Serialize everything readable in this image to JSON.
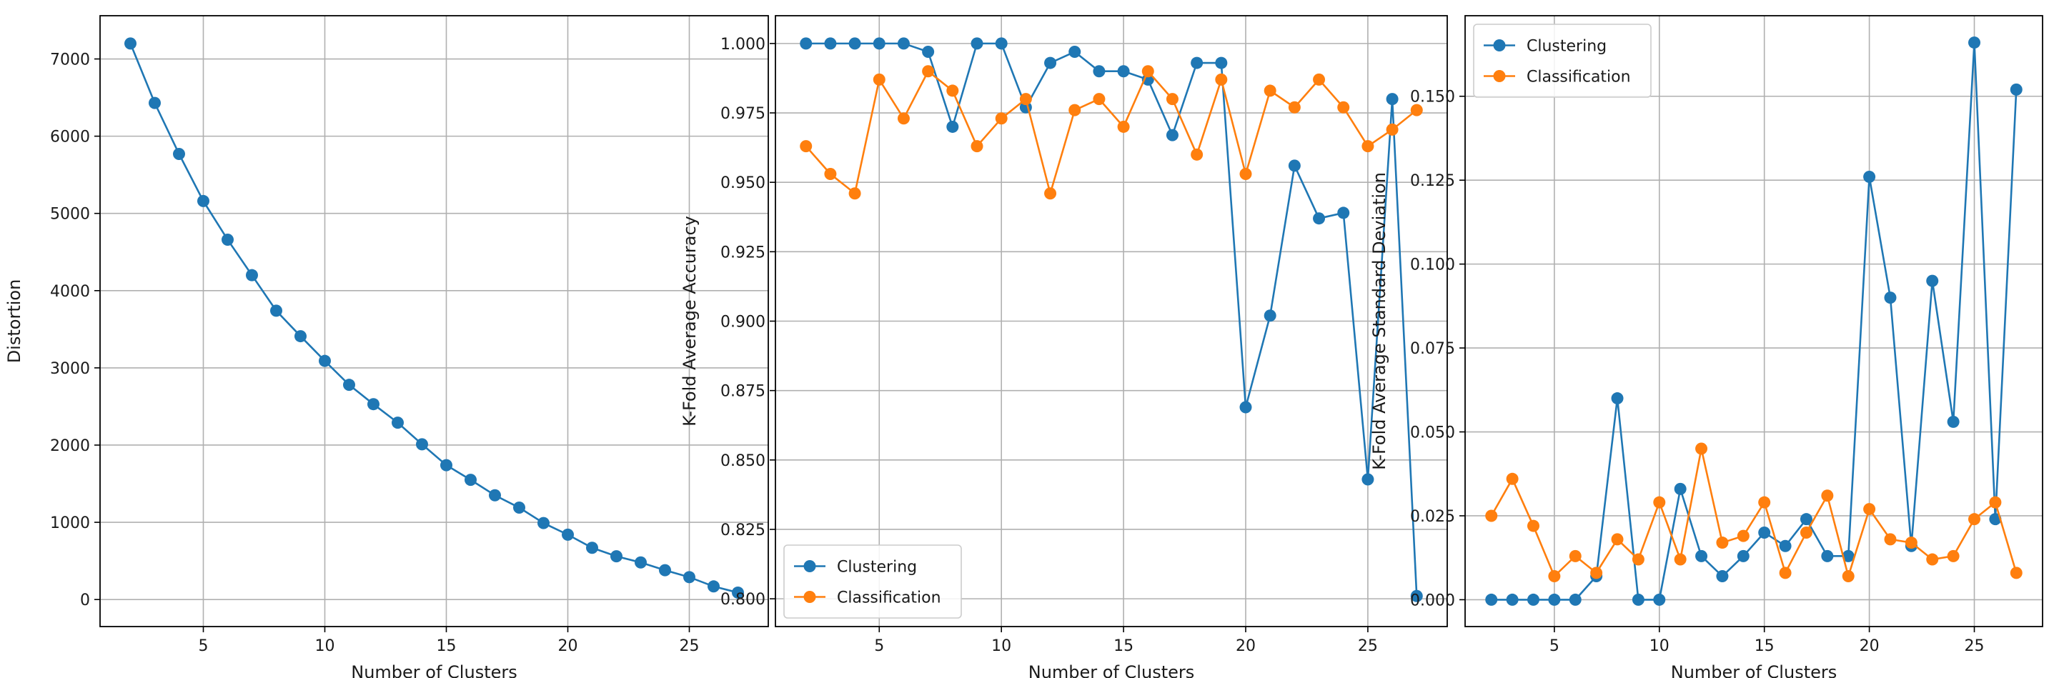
{
  "colors": {
    "clustering": "#1f77b4",
    "classification": "#ff7f0e",
    "grid": "#b0b0b0",
    "axis": "#000000"
  },
  "chart_data": [
    {
      "type": "line",
      "xlabel": "Number of Clusters",
      "ylabel": "Distortion",
      "xlim": [
        0.75,
        28.25
      ],
      "ylim": [
        -350,
        7560
      ],
      "xticks": [
        5,
        10,
        15,
        20,
        25
      ],
      "yticks": [
        0,
        1000,
        2000,
        3000,
        4000,
        5000,
        6000,
        7000
      ],
      "ytick_labels": [
        "0",
        "1000",
        "2000",
        "3000",
        "4000",
        "5000",
        "6000",
        "7000"
      ],
      "grid": true,
      "legend": null,
      "x": [
        2,
        3,
        4,
        5,
        6,
        7,
        8,
        9,
        10,
        11,
        12,
        13,
        14,
        15,
        16,
        17,
        18,
        19,
        20,
        21,
        22,
        23,
        24,
        25,
        26,
        27
      ],
      "series": [
        {
          "color": "#1f77b4",
          "values": [
            7200,
            6430,
            5770,
            5160,
            4660,
            4200,
            3740,
            3410,
            3090,
            2780,
            2530,
            2290,
            2010,
            1740,
            1550,
            1350,
            1190,
            990,
            840,
            670,
            560,
            480,
            380,
            290,
            170,
            90
          ]
        }
      ]
    },
    {
      "type": "line",
      "xlabel": "Number of Clusters",
      "ylabel": "K-Fold Average Accuracy",
      "xlim": [
        0.75,
        28.25
      ],
      "ylim": [
        0.79,
        1.01
      ],
      "xticks": [
        5,
        10,
        15,
        20,
        25
      ],
      "yticks": [
        0.8,
        0.825,
        0.85,
        0.875,
        0.9,
        0.925,
        0.95,
        0.975,
        1.0
      ],
      "ytick_labels": [
        "0.800",
        "0.825",
        "0.850",
        "0.875",
        "0.900",
        "0.925",
        "0.950",
        "0.975",
        "1.000"
      ],
      "grid": true,
      "legend": "lower-left",
      "x": [
        2,
        3,
        4,
        5,
        6,
        7,
        8,
        9,
        10,
        11,
        12,
        13,
        14,
        15,
        16,
        17,
        18,
        19,
        20,
        21,
        22,
        23,
        24,
        25,
        26,
        27
      ],
      "series": [
        {
          "name": "Clustering",
          "color": "#1f77b4",
          "values": [
            1.0,
            1.0,
            1.0,
            1.0,
            1.0,
            0.997,
            0.97,
            1.0,
            1.0,
            0.977,
            0.993,
            0.997,
            0.99,
            0.99,
            0.987,
            0.967,
            0.993,
            0.993,
            0.869,
            0.902,
            0.956,
            0.937,
            0.939,
            0.843,
            0.98,
            0.801
          ]
        },
        {
          "name": "Classification",
          "color": "#ff7f0e",
          "values": [
            0.963,
            0.953,
            0.946,
            0.987,
            0.973,
            0.99,
            0.983,
            0.963,
            0.973,
            0.98,
            0.946,
            0.976,
            0.98,
            0.97,
            0.99,
            0.98,
            0.96,
            0.987,
            0.953,
            0.983,
            0.977,
            0.987,
            0.977,
            0.963,
            0.969,
            0.976
          ]
        }
      ]
    },
    {
      "type": "line",
      "xlabel": "Number of Clusters",
      "ylabel": "K-Fold Average Standard Deviation",
      "xlim": [
        0.75,
        28.25
      ],
      "ylim": [
        -0.008,
        0.174
      ],
      "xticks": [
        5,
        10,
        15,
        20,
        25
      ],
      "yticks": [
        0.0,
        0.025,
        0.05,
        0.075,
        0.1,
        0.125,
        0.15
      ],
      "ytick_labels": [
        "0.000",
        "0.025",
        "0.050",
        "0.075",
        "0.100",
        "0.125",
        "0.150"
      ],
      "grid": true,
      "legend": "top-left",
      "x": [
        2,
        3,
        4,
        5,
        6,
        7,
        8,
        9,
        10,
        11,
        12,
        13,
        14,
        15,
        16,
        17,
        18,
        19,
        20,
        21,
        22,
        23,
        24,
        25,
        26,
        27
      ],
      "series": [
        {
          "name": "Clustering",
          "color": "#1f77b4",
          "values": [
            0.0,
            0.0,
            0.0,
            0.0,
            0.0,
            0.007,
            0.06,
            0.0,
            0.0,
            0.033,
            0.013,
            0.007,
            0.013,
            0.02,
            0.016,
            0.024,
            0.013,
            0.013,
            0.126,
            0.09,
            0.016,
            0.095,
            0.053,
            0.166,
            0.024,
            0.152
          ]
        },
        {
          "name": "Classification",
          "color": "#ff7f0e",
          "values": [
            0.025,
            0.036,
            0.022,
            0.007,
            0.013,
            0.008,
            0.018,
            0.012,
            0.029,
            0.012,
            0.045,
            0.017,
            0.019,
            0.029,
            0.008,
            0.02,
            0.031,
            0.007,
            0.027,
            0.018,
            0.017,
            0.012,
            0.013,
            0.024,
            0.029,
            0.008
          ]
        }
      ]
    }
  ]
}
